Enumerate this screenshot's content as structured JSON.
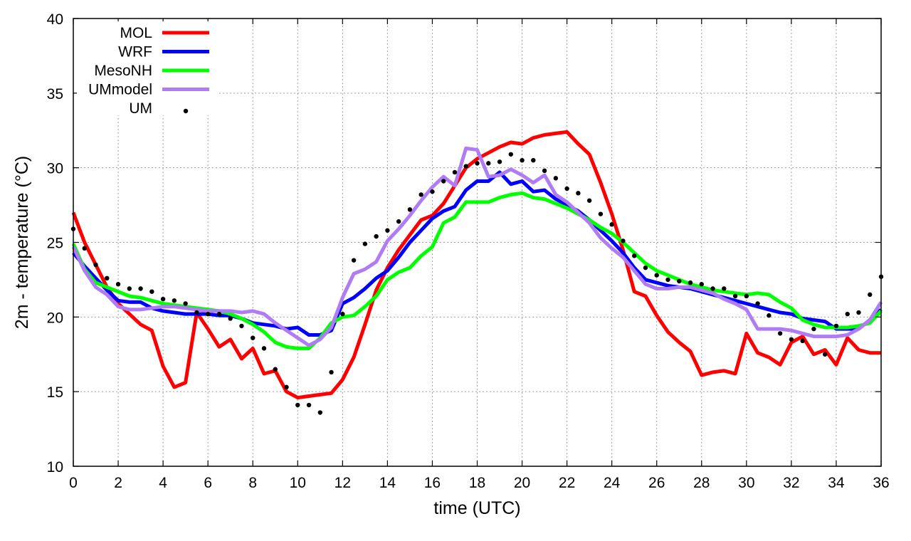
{
  "chart_data": {
    "type": "line",
    "title": "",
    "xlabel": "time (UTC)",
    "ylabel": "2m - temperature (°C)",
    "xlim": [
      0,
      36
    ],
    "ylim": [
      10,
      40
    ],
    "xticks": [
      0,
      2,
      4,
      6,
      8,
      10,
      12,
      14,
      16,
      18,
      20,
      22,
      24,
      26,
      28,
      30,
      32,
      34,
      36
    ],
    "yticks": [
      10,
      15,
      20,
      25,
      30,
      35,
      40
    ],
    "grid": true,
    "legend_position": "top-left",
    "series": [
      {
        "name": "MOL",
        "color": "#ff0000",
        "style": "line",
        "x": [
          0,
          0.5,
          1,
          1.5,
          2,
          2.5,
          3,
          3.5,
          4,
          4.5,
          5,
          5.5,
          6,
          6.5,
          7,
          7.5,
          8,
          8.5,
          9,
          9.5,
          10,
          10.5,
          11,
          11.5,
          12,
          12.5,
          13,
          13.5,
          14,
          14.5,
          15,
          15.5,
          16,
          16.5,
          17,
          17.5,
          18,
          18.5,
          19,
          19.5,
          20,
          20.5,
          21,
          21.5,
          22,
          22.5,
          23,
          23.5,
          24,
          24.5,
          25,
          25.5,
          26,
          26.5,
          27,
          27.5,
          28,
          28.5,
          29,
          29.5,
          30,
          30.5,
          31,
          31.5,
          32,
          32.5,
          33,
          33.5,
          34,
          34.5,
          35,
          35.5,
          36
        ],
        "y": [
          27,
          25,
          23.5,
          22,
          20.9,
          20.2,
          19.5,
          19.1,
          16.7,
          15.3,
          15.6,
          20.3,
          19.2,
          18,
          18.5,
          17.2,
          17.9,
          16.2,
          16.4,
          15,
          14.6,
          14.7,
          14.8,
          14.9,
          15.8,
          17.3,
          19.5,
          21.8,
          23.3,
          24.5,
          25.5,
          26.5,
          26.8,
          27.6,
          28.8,
          30,
          30.6,
          31,
          31.4,
          31.7,
          31.6,
          32,
          32.2,
          32.3,
          32.4,
          31.6,
          30.9,
          29,
          26.9,
          24.5,
          21.7,
          21.4,
          20.1,
          19,
          18.3,
          17.7,
          16.1,
          16.3,
          16.4,
          16.2,
          18.9,
          17.6,
          17.3,
          16.8,
          18.3,
          18.7,
          17.5,
          17.8,
          16.8,
          18.6,
          17.8,
          17.6,
          17.6
        ]
      },
      {
        "name": "WRF",
        "color": "#0000ff",
        "style": "line",
        "x": [
          0,
          0.5,
          1,
          1.5,
          2,
          2.5,
          3,
          3.5,
          4,
          4.5,
          5,
          5.5,
          6,
          6.5,
          7,
          7.5,
          8,
          8.5,
          9,
          9.5,
          10,
          10.5,
          11,
          11.5,
          12,
          12.5,
          13,
          13.5,
          14,
          14.5,
          15,
          15.5,
          16,
          16.5,
          17,
          17.5,
          18,
          18.5,
          19,
          19.5,
          20,
          20.5,
          21,
          21.5,
          22,
          22.5,
          23,
          23.5,
          24,
          24.5,
          25,
          25.5,
          26,
          26.5,
          27,
          27.5,
          28,
          28.5,
          29,
          29.5,
          30,
          30.5,
          31,
          31.5,
          32,
          32.5,
          33,
          33.5,
          34,
          34.5,
          35,
          35.5,
          36
        ],
        "y": [
          24.3,
          23.4,
          22.6,
          21.8,
          21.1,
          21,
          21,
          20.6,
          20.4,
          20.3,
          20.2,
          20.2,
          20.2,
          20.1,
          20.1,
          19.9,
          19.6,
          19.5,
          19.4,
          19.2,
          19.3,
          18.8,
          18.8,
          19.1,
          20.9,
          21.3,
          21.9,
          22.6,
          23.1,
          24,
          25,
          25.8,
          26.6,
          27.1,
          27.4,
          28.5,
          29.1,
          29.1,
          29.7,
          28.9,
          29.1,
          28.4,
          28.5,
          27.9,
          27.5,
          27.1,
          26.5,
          25.8,
          25.1,
          24.3,
          23.3,
          22.5,
          22.3,
          22.1,
          22,
          21.9,
          21.7,
          21.5,
          21.3,
          21.1,
          20.9,
          20.7,
          20.5,
          20.3,
          20.2,
          19.9,
          19.8,
          19.7,
          19.2,
          19.2,
          19.2,
          19.8,
          20.5
        ]
      },
      {
        "name": "MesoNH",
        "color": "#00ff00",
        "style": "line",
        "x": [
          0,
          0.5,
          1,
          1.5,
          2,
          2.5,
          3,
          3.5,
          4,
          4.5,
          5,
          5.5,
          6,
          6.5,
          7,
          7.5,
          8,
          8.5,
          9,
          9.5,
          10,
          10.5,
          11,
          11.5,
          12,
          12.5,
          13,
          13.5,
          14,
          14.5,
          15,
          15.5,
          16,
          16.5,
          17,
          17.5,
          18,
          18.5,
          19,
          19.5,
          20,
          20.5,
          21,
          21.5,
          22,
          22.5,
          23,
          23.5,
          24,
          24.5,
          25,
          25.5,
          26,
          26.5,
          27,
          27.5,
          28,
          28.5,
          29,
          29.5,
          30,
          30.5,
          31,
          31.5,
          32,
          32.5,
          33,
          33.5,
          34,
          34.5,
          35,
          35.5,
          36
        ],
        "y": [
          24.9,
          23.2,
          22.3,
          22,
          21.7,
          21.4,
          21.3,
          21.1,
          20.9,
          20.8,
          20.7,
          20.6,
          20.5,
          20.4,
          20.2,
          19.9,
          19.5,
          19,
          18.3,
          18,
          17.9,
          17.9,
          18.6,
          19.6,
          20,
          20.1,
          20.7,
          21.4,
          22.5,
          23,
          23.3,
          24.1,
          24.7,
          26.3,
          26.7,
          27.7,
          27.7,
          27.7,
          28,
          28.2,
          28.3,
          28,
          27.9,
          27.6,
          27.3,
          26.9,
          26.5,
          26,
          25.6,
          25,
          24.3,
          23.6,
          23.1,
          22.8,
          22.5,
          22.2,
          22,
          21.8,
          21.7,
          21.6,
          21.5,
          21.6,
          21.5,
          21,
          20.6,
          19.8,
          19.5,
          19.3,
          19.3,
          19.3,
          19.4,
          19.6,
          20.4
        ]
      },
      {
        "name": "UMmodel",
        "color": "#b07cf3",
        "style": "line",
        "x": [
          0,
          0.5,
          1,
          1.5,
          2,
          2.5,
          3,
          3.5,
          4,
          4.5,
          5,
          5.5,
          6,
          6.5,
          7,
          7.5,
          8,
          8.5,
          9,
          9.5,
          10,
          10.5,
          11,
          11.5,
          12,
          12.5,
          13,
          13.5,
          14,
          14.5,
          15,
          15.5,
          16,
          16.5,
          17,
          17.5,
          18,
          18.5,
          19,
          19.5,
          20,
          20.5,
          21,
          21.5,
          22,
          22.5,
          23,
          23.5,
          24,
          24.5,
          25,
          25.5,
          26,
          26.5,
          27,
          27.5,
          28,
          28.5,
          29,
          29.5,
          30,
          30.5,
          31,
          31.5,
          32,
          32.5,
          33,
          33.5,
          34,
          34.5,
          35,
          35.5,
          36
        ],
        "y": [
          24.7,
          23.1,
          22,
          21.5,
          20.7,
          20.5,
          20.5,
          20.6,
          20.7,
          20.7,
          20.6,
          20.5,
          20.4,
          20.4,
          20.4,
          20.3,
          20.4,
          20.2,
          19.6,
          19.1,
          18.6,
          18.1,
          18.5,
          19.3,
          21.3,
          22.9,
          23.2,
          23.7,
          25.1,
          25.9,
          26.8,
          27.8,
          28.7,
          29.4,
          28.8,
          31.3,
          31.2,
          29.4,
          29.5,
          29.9,
          29.5,
          29,
          29.5,
          28.2,
          27.7,
          27,
          26.3,
          25.3,
          24.6,
          24,
          23.1,
          22.2,
          21.9,
          21.9,
          22,
          22,
          21.8,
          21.6,
          21.2,
          20.9,
          20.5,
          19.2,
          19.2,
          19.2,
          19.1,
          18.9,
          18.7,
          18.7,
          18.7,
          18.8,
          19.2,
          19.8,
          21
        ]
      },
      {
        "name": "UM",
        "color": "#000000",
        "style": "points",
        "x": [
          0,
          0.5,
          1,
          1.5,
          2,
          2.5,
          3,
          3.5,
          4,
          4.5,
          5,
          5.5,
          6,
          6.5,
          7,
          7.5,
          8,
          8.5,
          9,
          9.5,
          10,
          10.5,
          11,
          11.5,
          12,
          12.5,
          13,
          13.5,
          14,
          14.5,
          15,
          15.5,
          16,
          16.5,
          17,
          17.5,
          18,
          18.5,
          19,
          19.5,
          20,
          20.5,
          21,
          21.5,
          22,
          22.5,
          23,
          23.5,
          24,
          24.5,
          25,
          25.5,
          26,
          26.5,
          27,
          27.5,
          28,
          28.5,
          29,
          29.5,
          30,
          30.5,
          31,
          31.5,
          32,
          32.5,
          33,
          33.5,
          34,
          34.5,
          35,
          35.5,
          36
        ],
        "y": [
          25.9,
          24.6,
          23.5,
          22.6,
          22.2,
          21.9,
          21.9,
          21.7,
          21.2,
          21.1,
          20.9,
          20.3,
          20.2,
          20.2,
          19.9,
          19.4,
          18.6,
          17.9,
          16.5,
          15.3,
          14.1,
          14.1,
          13.6,
          16.3,
          20.2,
          23.8,
          24.9,
          25.4,
          25.8,
          26.4,
          27.2,
          28.2,
          28.4,
          29.1,
          29.7,
          30.1,
          30.3,
          30.3,
          30.4,
          30.9,
          30.5,
          30.5,
          29.8,
          29.3,
          28.6,
          28.3,
          27.8,
          26.9,
          26.2,
          25.1,
          24.1,
          23.3,
          22.8,
          22.5,
          22.4,
          22.3,
          22.2,
          21.9,
          21.9,
          21.4,
          21.4,
          20.9,
          20.1,
          18.9,
          18.5,
          18.4,
          19.2,
          17.5,
          19.4,
          20.2,
          20.3,
          21.5,
          22.7
        ]
      }
    ]
  }
}
